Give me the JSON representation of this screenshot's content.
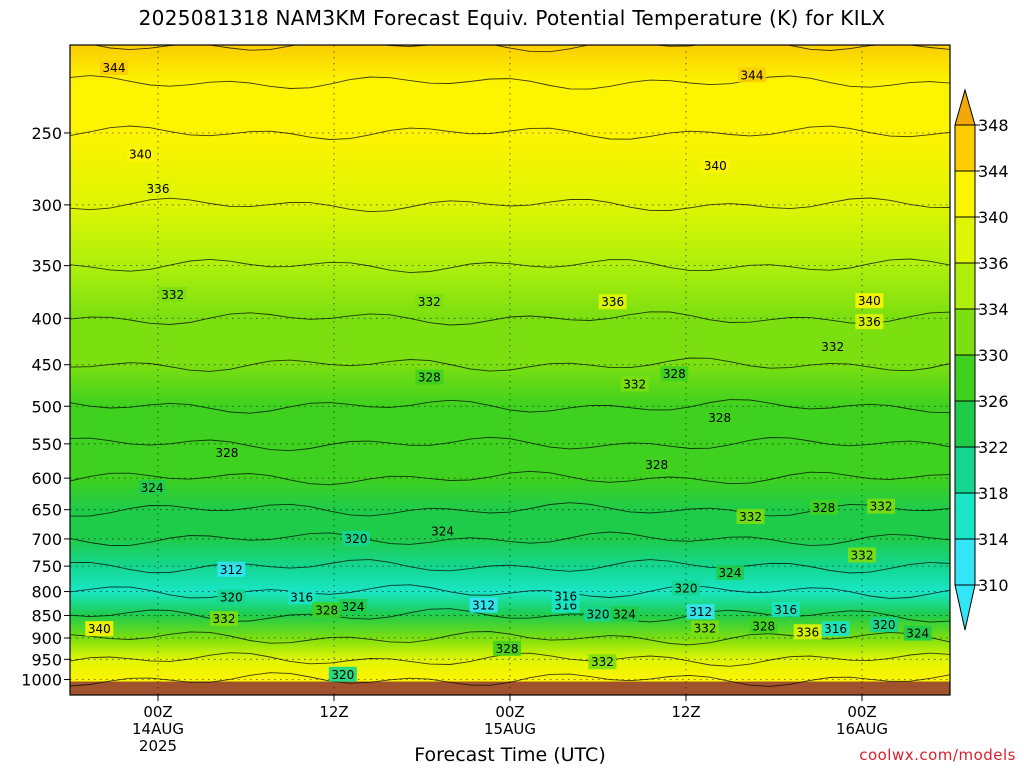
{
  "chart_data": {
    "type": "heatmap",
    "title": "2025081318 NAM3KM Forecast Equiv. Potential Temperature (K) for KILX",
    "xlabel": "Forecast Time (UTC)",
    "ylabel": "",
    "y_scale": "log-pressure (inverted)",
    "y_range_hPa": [
      1040,
      200
    ],
    "x_range_hours_from_init": [
      0,
      60
    ],
    "grid": "dotted",
    "x_ticks": [
      {
        "hour": 6,
        "lines": [
          "00Z",
          "14AUG",
          "2025"
        ]
      },
      {
        "hour": 18,
        "lines": [
          "12Z"
        ]
      },
      {
        "hour": 30,
        "lines": [
          "00Z",
          "15AUG"
        ]
      },
      {
        "hour": 42,
        "lines": [
          "12Z"
        ]
      },
      {
        "hour": 54,
        "lines": [
          "00Z",
          "16AUG"
        ]
      }
    ],
    "y_ticks": [
      {
        "p": 250,
        "label": "250"
      },
      {
        "p": 300,
        "label": "300"
      },
      {
        "p": 350,
        "label": "350"
      },
      {
        "p": 400,
        "label": "400"
      },
      {
        "p": 450,
        "label": "450"
      },
      {
        "p": 500,
        "label": "500"
      },
      {
        "p": 550,
        "label": "550"
      },
      {
        "p": 600,
        "label": "600"
      },
      {
        "p": 650,
        "label": "650"
      },
      {
        "p": 700,
        "label": "700"
      },
      {
        "p": 750,
        "label": "750"
      },
      {
        "p": 800,
        "label": "800"
      },
      {
        "p": 850,
        "label": "850"
      },
      {
        "p": 900,
        "label": "900"
      },
      {
        "p": 950,
        "label": "950"
      },
      {
        "p": 1000,
        "label": "1000"
      }
    ],
    "colorbar": {
      "levels": [
        310,
        314,
        318,
        322,
        326,
        330,
        334,
        336,
        340,
        344,
        348
      ],
      "labels": [
        "310",
        "314",
        "318",
        "322",
        "326",
        "330",
        "334",
        "336",
        "340",
        "344",
        "348"
      ],
      "colors": [
        "#33e6f7",
        "#19e6c6",
        "#14d690",
        "#1fcc4a",
        "#3fd11f",
        "#7bdf10",
        "#aef00c",
        "#dff503",
        "#fdf400",
        "#fccd00",
        "#f3a80a"
      ],
      "extend": "both"
    },
    "layers_theta_e": [
      {
        "p": 1040,
        "theta_e": 338
      },
      {
        "p": 1000,
        "theta_e": 340
      },
      {
        "p": 950,
        "theta_e": 336
      },
      {
        "p": 900,
        "theta_e": 330
      },
      {
        "p": 850,
        "theta_e": 322
      },
      {
        "p": 800,
        "theta_e": 314
      },
      {
        "p": 750,
        "theta_e": 318
      },
      {
        "p": 700,
        "theta_e": 322
      },
      {
        "p": 650,
        "theta_e": 324
      },
      {
        "p": 600,
        "theta_e": 326
      },
      {
        "p": 550,
        "theta_e": 327
      },
      {
        "p": 500,
        "theta_e": 329
      },
      {
        "p": 450,
        "theta_e": 330
      },
      {
        "p": 400,
        "theta_e": 332
      },
      {
        "p": 350,
        "theta_e": 334
      },
      {
        "p": 300,
        "theta_e": 337
      },
      {
        "p": 250,
        "theta_e": 340
      },
      {
        "p": 220,
        "theta_e": 343
      },
      {
        "p": 200,
        "theta_e": 345
      }
    ],
    "contour_labels": [
      {
        "hour": 3.0,
        "p": 212,
        "text": "344"
      },
      {
        "hour": 46.5,
        "p": 216,
        "text": "344"
      },
      {
        "hour": 4.8,
        "p": 264,
        "text": "340"
      },
      {
        "hour": 44.0,
        "p": 272,
        "text": "340"
      },
      {
        "hour": 6.0,
        "p": 288,
        "text": "336"
      },
      {
        "hour": 37.0,
        "p": 384,
        "text": "336"
      },
      {
        "hour": 54.5,
        "p": 383,
        "text": "340"
      },
      {
        "hour": 54.5,
        "p": 404,
        "text": "336"
      },
      {
        "hour": 7.0,
        "p": 377,
        "text": "332"
      },
      {
        "hour": 24.5,
        "p": 384,
        "text": "332"
      },
      {
        "hour": 52.0,
        "p": 430,
        "text": "332"
      },
      {
        "hour": 38.5,
        "p": 473,
        "text": "332"
      },
      {
        "hour": 24.5,
        "p": 465,
        "text": "328"
      },
      {
        "hour": 41.2,
        "p": 461,
        "text": "328"
      },
      {
        "hour": 44.3,
        "p": 515,
        "text": "328"
      },
      {
        "hour": 40.0,
        "p": 580,
        "text": "328"
      },
      {
        "hour": 10.7,
        "p": 563,
        "text": "328"
      },
      {
        "hour": 5.6,
        "p": 615,
        "text": "324"
      },
      {
        "hour": 25.4,
        "p": 687,
        "text": "324"
      },
      {
        "hour": 19.5,
        "p": 700,
        "text": "320"
      },
      {
        "hour": 46.4,
        "p": 662,
        "text": "332"
      },
      {
        "hour": 51.4,
        "p": 647,
        "text": "328"
      },
      {
        "hour": 55.3,
        "p": 645,
        "text": "332"
      },
      {
        "hour": 54.0,
        "p": 730,
        "text": "332"
      },
      {
        "hour": 11.0,
        "p": 757,
        "text": "312"
      },
      {
        "hour": 11.0,
        "p": 812,
        "text": "320"
      },
      {
        "hour": 15.8,
        "p": 812,
        "text": "316"
      },
      {
        "hour": 17.5,
        "p": 839,
        "text": "328"
      },
      {
        "hour": 19.3,
        "p": 832,
        "text": "324"
      },
      {
        "hour": 10.5,
        "p": 858,
        "text": "332"
      },
      {
        "hour": 2.0,
        "p": 880,
        "text": "340"
      },
      {
        "hour": 28.2,
        "p": 829,
        "text": "312"
      },
      {
        "hour": 33.8,
        "p": 829,
        "text": "316"
      },
      {
        "hour": 33.8,
        "p": 810,
        "text": "316"
      },
      {
        "hour": 36.0,
        "p": 848,
        "text": "320"
      },
      {
        "hour": 37.8,
        "p": 848,
        "text": "324"
      },
      {
        "hour": 43.0,
        "p": 843,
        "text": "312"
      },
      {
        "hour": 48.8,
        "p": 838,
        "text": "316"
      },
      {
        "hour": 42.0,
        "p": 794,
        "text": "320"
      },
      {
        "hour": 45.0,
        "p": 763,
        "text": "324"
      },
      {
        "hour": 29.8,
        "p": 925,
        "text": "328"
      },
      {
        "hour": 36.3,
        "p": 957,
        "text": "332"
      },
      {
        "hour": 43.3,
        "p": 879,
        "text": "332"
      },
      {
        "hour": 47.3,
        "p": 874,
        "text": "328"
      },
      {
        "hour": 50.3,
        "p": 887,
        "text": "336"
      },
      {
        "hour": 52.2,
        "p": 880,
        "text": "316"
      },
      {
        "hour": 55.5,
        "p": 871,
        "text": "320"
      },
      {
        "hour": 57.8,
        "p": 890,
        "text": "324"
      },
      {
        "hour": 18.6,
        "p": 988,
        "text": "320"
      }
    ]
  },
  "credit": "coolwx.com/models"
}
